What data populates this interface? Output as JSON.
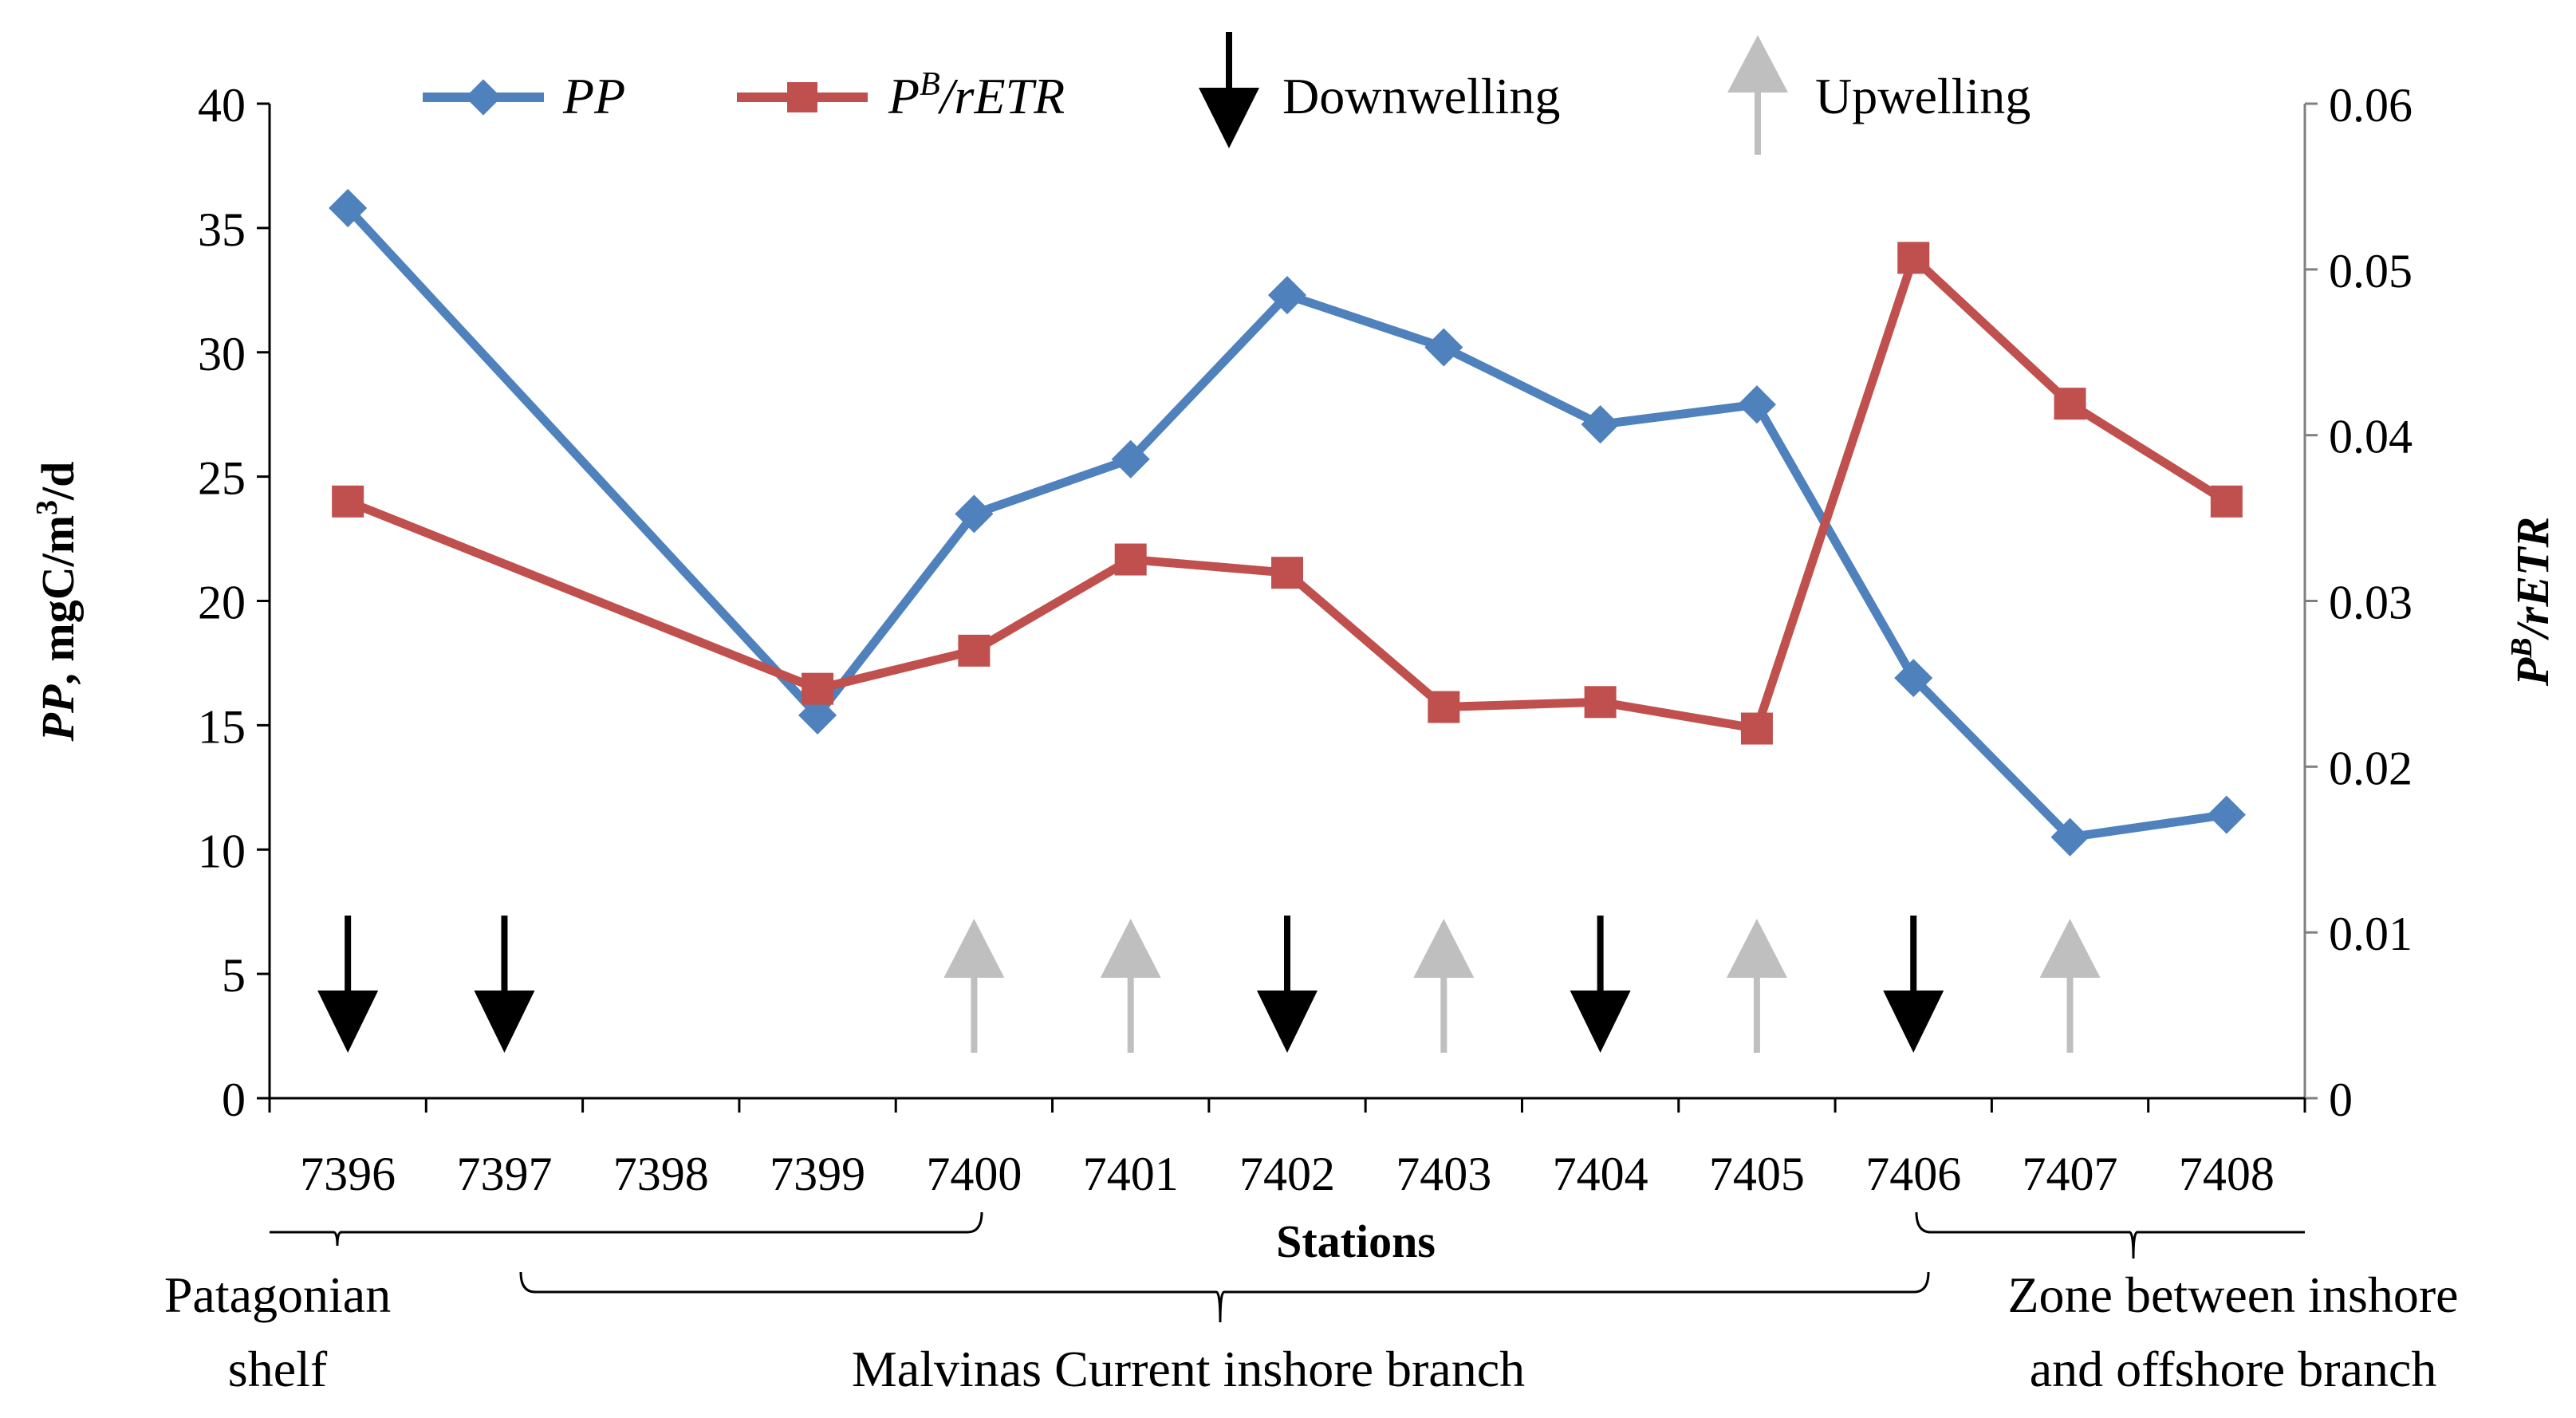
{
  "chart_data": {
    "type": "line",
    "xlabel": "Stations",
    "categories": [
      "7396",
      "7397",
      "7398",
      "7399",
      "7400",
      "7401",
      "7402",
      "7403",
      "7404",
      "7405",
      "7406",
      "7407",
      "7408"
    ],
    "y_left": {
      "label": "PP, mgC/m3/d",
      "label_bold_italic_part": "PP",
      "label_rest": ", mgC/m",
      "label_sup": "3",
      "label_end": "/d",
      "ylim": [
        0,
        40
      ],
      "ticks": [
        0,
        5,
        10,
        15,
        20,
        25,
        30,
        35,
        40
      ]
    },
    "y_right": {
      "label": "PB/rETR",
      "label_main": "P",
      "label_sup": "B",
      "label_end": "/rETR",
      "ylim": [
        0,
        0.06
      ],
      "ticks": [
        "0",
        "0.01",
        "0.02",
        "0.03",
        "0.04",
        "0.05",
        "0.06"
      ]
    },
    "series": [
      {
        "name": "PP",
        "axis": "left",
        "color": "#4f81bd",
        "marker": "diamond",
        "points": [
          [
            0,
            35.8
          ],
          [
            3,
            15.4
          ],
          [
            4,
            23.5
          ],
          [
            5,
            25.7
          ],
          [
            6,
            32.3
          ],
          [
            7,
            30.2
          ],
          [
            8,
            27.1
          ],
          [
            9,
            27.9
          ],
          [
            10,
            16.9
          ],
          [
            11,
            10.5
          ],
          [
            12,
            11.4
          ]
        ]
      },
      {
        "name": "PB/rETR",
        "axis": "right",
        "color": "#c0504d",
        "marker": "square",
        "points": [
          [
            0,
            0.036
          ],
          [
            3,
            0.0247
          ],
          [
            4,
            0.027
          ],
          [
            5,
            0.0325
          ],
          [
            6,
            0.0317
          ],
          [
            7,
            0.0236
          ],
          [
            8,
            0.0239
          ],
          [
            9,
            0.0223
          ],
          [
            10,
            0.0507
          ],
          [
            11,
            0.0419
          ],
          [
            12,
            0.036
          ]
        ]
      }
    ],
    "arrows": [
      {
        "station": 0,
        "type": "down"
      },
      {
        "station": 1,
        "type": "down"
      },
      {
        "station": 4,
        "type": "up"
      },
      {
        "station": 5,
        "type": "up"
      },
      {
        "station": 6,
        "type": "down"
      },
      {
        "station": 7,
        "type": "up"
      },
      {
        "station": 8,
        "type": "down"
      },
      {
        "station": 9,
        "type": "up"
      },
      {
        "station": 10,
        "type": "down"
      },
      {
        "station": 11,
        "type": "up"
      }
    ],
    "legend": {
      "pp": "PP",
      "pb_main": "P",
      "pb_sup": "B",
      "pb_end": "/rETR",
      "down": "Downwelling",
      "up": "Upwelling"
    },
    "zones": {
      "patagonian_line1": "Patagonian",
      "patagonian_line2": "shelf",
      "malvinas": "Malvinas Current inshore branch",
      "zone_line1": "Zone between inshore",
      "zone_line2": "and offshore branch"
    },
    "colors": {
      "pp": "#4f81bd",
      "pb": "#c0504d",
      "down": "#000000",
      "up": "#bfbfbf",
      "axis_right": "#808080"
    }
  }
}
